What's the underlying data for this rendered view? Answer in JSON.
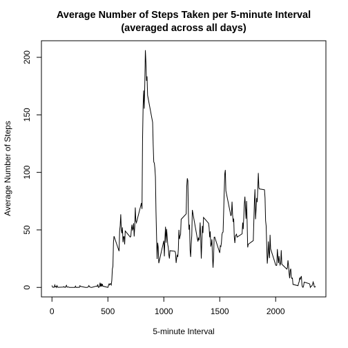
{
  "chart_data": {
    "type": "line",
    "title": "Average Number of Steps Taken per 5-minute Interval",
    "subtitle": "(averaged across all days)",
    "x_label": "5-minute Interval",
    "y_label": "Average Number of Steps",
    "x": [
      0,
      5,
      10,
      15,
      20,
      25,
      30,
      35,
      40,
      45,
      50,
      55,
      100,
      105,
      110,
      115,
      120,
      125,
      130,
      135,
      140,
      145,
      150,
      155,
      200,
      205,
      210,
      215,
      220,
      225,
      230,
      235,
      240,
      245,
      250,
      255,
      300,
      305,
      310,
      315,
      320,
      325,
      330,
      335,
      340,
      345,
      350,
      355,
      400,
      405,
      410,
      415,
      420,
      425,
      430,
      435,
      440,
      445,
      450,
      455,
      500,
      505,
      510,
      515,
      520,
      525,
      530,
      535,
      540,
      545,
      550,
      555,
      600,
      605,
      610,
      615,
      620,
      625,
      630,
      635,
      640,
      645,
      650,
      655,
      700,
      705,
      710,
      715,
      720,
      725,
      730,
      735,
      740,
      745,
      750,
      755,
      800,
      805,
      810,
      815,
      820,
      825,
      830,
      835,
      840,
      845,
      850,
      855,
      900,
      905,
      910,
      915,
      920,
      925,
      930,
      935,
      940,
      945,
      950,
      955,
      1000,
      1005,
      1010,
      1015,
      1020,
      1025,
      1030,
      1035,
      1040,
      1045,
      1050,
      1055,
      1100,
      1105,
      1110,
      1115,
      1120,
      1125,
      1130,
      1135,
      1140,
      1145,
      1150,
      1155,
      1200,
      1205,
      1210,
      1215,
      1220,
      1225,
      1230,
      1235,
      1240,
      1245,
      1250,
      1255,
      1300,
      1305,
      1310,
      1315,
      1320,
      1325,
      1330,
      1335,
      1340,
      1345,
      1350,
      1355,
      1400,
      1405,
      1410,
      1415,
      1420,
      1425,
      1430,
      1435,
      1440,
      1445,
      1450,
      1455,
      1500,
      1505,
      1510,
      1515,
      1520,
      1525,
      1530,
      1535,
      1540,
      1545,
      1550,
      1555,
      1600,
      1605,
      1610,
      1615,
      1620,
      1625,
      1630,
      1635,
      1640,
      1645,
      1650,
      1655,
      1700,
      1705,
      1710,
      1715,
      1720,
      1725,
      1730,
      1735,
      1740,
      1745,
      1750,
      1755,
      1800,
      1805,
      1810,
      1815,
      1820,
      1825,
      1830,
      1835,
      1840,
      1845,
      1850,
      1855,
      1900,
      1905,
      1910,
      1915,
      1920,
      1925,
      1930,
      1935,
      1940,
      1945,
      1950,
      1955,
      2000,
      2005,
      2010,
      2015,
      2020,
      2025,
      2030,
      2035,
      2040,
      2045,
      2050,
      2055,
      2100,
      2105,
      2110,
      2115,
      2120,
      2125,
      2130,
      2135,
      2140,
      2145,
      2150,
      2155,
      2200,
      2205,
      2210,
      2215,
      2220,
      2225,
      2230,
      2235,
      2240,
      2245,
      2250,
      2255,
      2300,
      2305,
      2310,
      2315,
      2320,
      2325,
      2330,
      2335,
      2340,
      2345,
      2350,
      2355
    ],
    "series": [
      {
        "color": "#000000",
        "values": [
          1.7,
          0.3,
          0.1,
          0.2,
          0.1,
          2.1,
          0.5,
          0.9,
          0,
          1.5,
          0.3,
          0.1,
          0.3,
          0.7,
          0.2,
          0.3,
          0,
          1.1,
          1.8,
          0.2,
          0.2,
          0.4,
          0.3,
          0,
          0,
          0,
          1.1,
          0,
          0,
          0.1,
          0,
          0.2,
          0,
          0,
          1.5,
          0.9,
          0,
          0,
          0,
          0,
          0.2,
          0.6,
          1.6,
          0.6,
          0.5,
          0.1,
          0,
          0,
          1.2,
          0.9,
          2.6,
          0,
          0.3,
          0.4,
          4.1,
          0.7,
          3.5,
          0.8,
          3.1,
          1.1,
          0,
          1.6,
          3,
          2.2,
          3.3,
          3,
          2.1,
          6.1,
          16,
          18.3,
          39.5,
          44.5,
          31.5,
          49.3,
          53.8,
          63.5,
          50,
          47.1,
          52.2,
          39.3,
          44,
          44.2,
          37.4,
          49,
          43.8,
          44.4,
          50.5,
          54.5,
          49.9,
          51,
          55.7,
          44.3,
          52.3,
          69.5,
          57.8,
          56.2,
          73.4,
          68.2,
          129.4,
          157.5,
          171.2,
          155.4,
          177.3,
          206.2,
          195.9,
          179.6,
          183.4,
          167,
          143.5,
          124,
          109.1,
          108.1,
          103.7,
          96,
          66.2,
          45.2,
          24.8,
          38.8,
          35,
          21.1,
          40.6,
          27,
          42.4,
          52.7,
          38.9,
          50.8,
          44.3,
          37.4,
          34.7,
          28.3,
          25.1,
          31.9,
          31.4,
          29.7,
          21.3,
          25.5,
          28.4,
          26.5,
          33.4,
          50,
          42,
          44.6,
          46,
          59.2,
          63.9,
          87.7,
          94.8,
          92.8,
          63.4,
          50.2,
          54.5,
          32.4,
          26.5,
          37.7,
          45.1,
          67.3,
          42.3,
          39.9,
          43.3,
          41,
          46.2,
          56.4,
          42.8,
          25.1,
          40,
          53.5,
          47.3,
          60.8,
          55.8,
          52,
          43.6,
          48.7,
          35.5,
          37.5,
          41.8,
          27.5,
          17.1,
          26.1,
          43.6,
          43.8,
          30,
          36.1,
          35.5,
          38.8,
          46,
          47.8,
          48.1,
          65.3,
          82.9,
          98.7,
          102.1,
          84,
          62.1,
          64.1,
          74.5,
          63.2,
          56.9,
          59.8,
          43.9,
          38.6,
          44.7,
          45.5,
          46.2,
          43.7,
          46.6,
          56.3,
          50.7,
          61.2,
          72.7,
          78.9,
          68.9,
          59.7,
          75.1,
          56.5,
          34.8,
          37.5,
          40.7,
          58,
          74.7,
          85.3,
          59.3,
          67.8,
          77.7,
          74.2,
          85.3,
          99.5,
          86.6,
          85.6,
          84.9,
          77.8,
          58,
          53.4,
          36.3,
          20.7,
          27.4,
          40,
          30.2,
          25.5,
          45.7,
          33.5,
          19.6,
          19,
          19.3,
          33.3,
          26.8,
          21.2,
          27.3,
          21.3,
          19.5,
          21.3,
          32.3,
          20.2,
          15.9,
          17.2,
          23.5,
          19.2,
          12.5,
          8,
          14.7,
          16.3,
          8.7,
          7.8,
          8.1,
          2.6,
          1.5,
          3.7,
          4.8,
          8.5,
          7.1,
          8.7,
          9.8,
          2.2,
          0.3,
          0.1,
          1.6,
          4.6,
          3.3,
          2.8,
          0,
          0.8,
          1,
          1.6,
          2.6,
          4.7,
          3.3,
          0.6,
          0.2,
          1.1
        ]
      }
    ],
    "xlim": [
      -94.2,
      2449.2
    ],
    "ylim": [
      -8.25,
      214.42
    ],
    "xticks": [
      0,
      500,
      1000,
      1500,
      2000
    ],
    "yticks": [
      0,
      50,
      100,
      150,
      200
    ]
  }
}
